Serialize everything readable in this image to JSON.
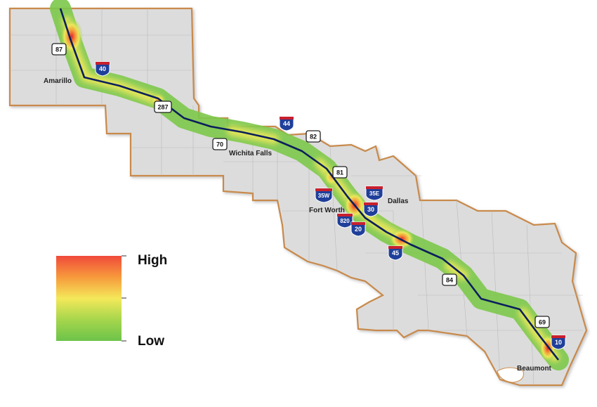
{
  "map": {
    "cities": [
      {
        "name": "Amarillo"
      },
      {
        "name": "Wichita Falls"
      },
      {
        "name": "Fort Worth"
      },
      {
        "name": "Dallas"
      },
      {
        "name": "Beaumont"
      }
    ],
    "us_routes": [
      "87",
      "287",
      "70",
      "82",
      "81",
      "84",
      "69"
    ],
    "interstates": [
      "40",
      "44",
      "35W",
      "35E",
      "30",
      "820",
      "20",
      "45",
      "10"
    ]
  },
  "legend": {
    "high_label": "High",
    "low_label": "Low",
    "colors": [
      "#f04a3a",
      "#f79a3c",
      "#f4e85a",
      "#a6d64c",
      "#6cc34a"
    ]
  },
  "colors": {
    "corridor_fill": "#dcdcdc",
    "corridor_border": "#c98a4b",
    "route_line": "#0b1f5c",
    "interstate_blue": "#1f3f9a",
    "interstate_red": "#c8202e"
  }
}
